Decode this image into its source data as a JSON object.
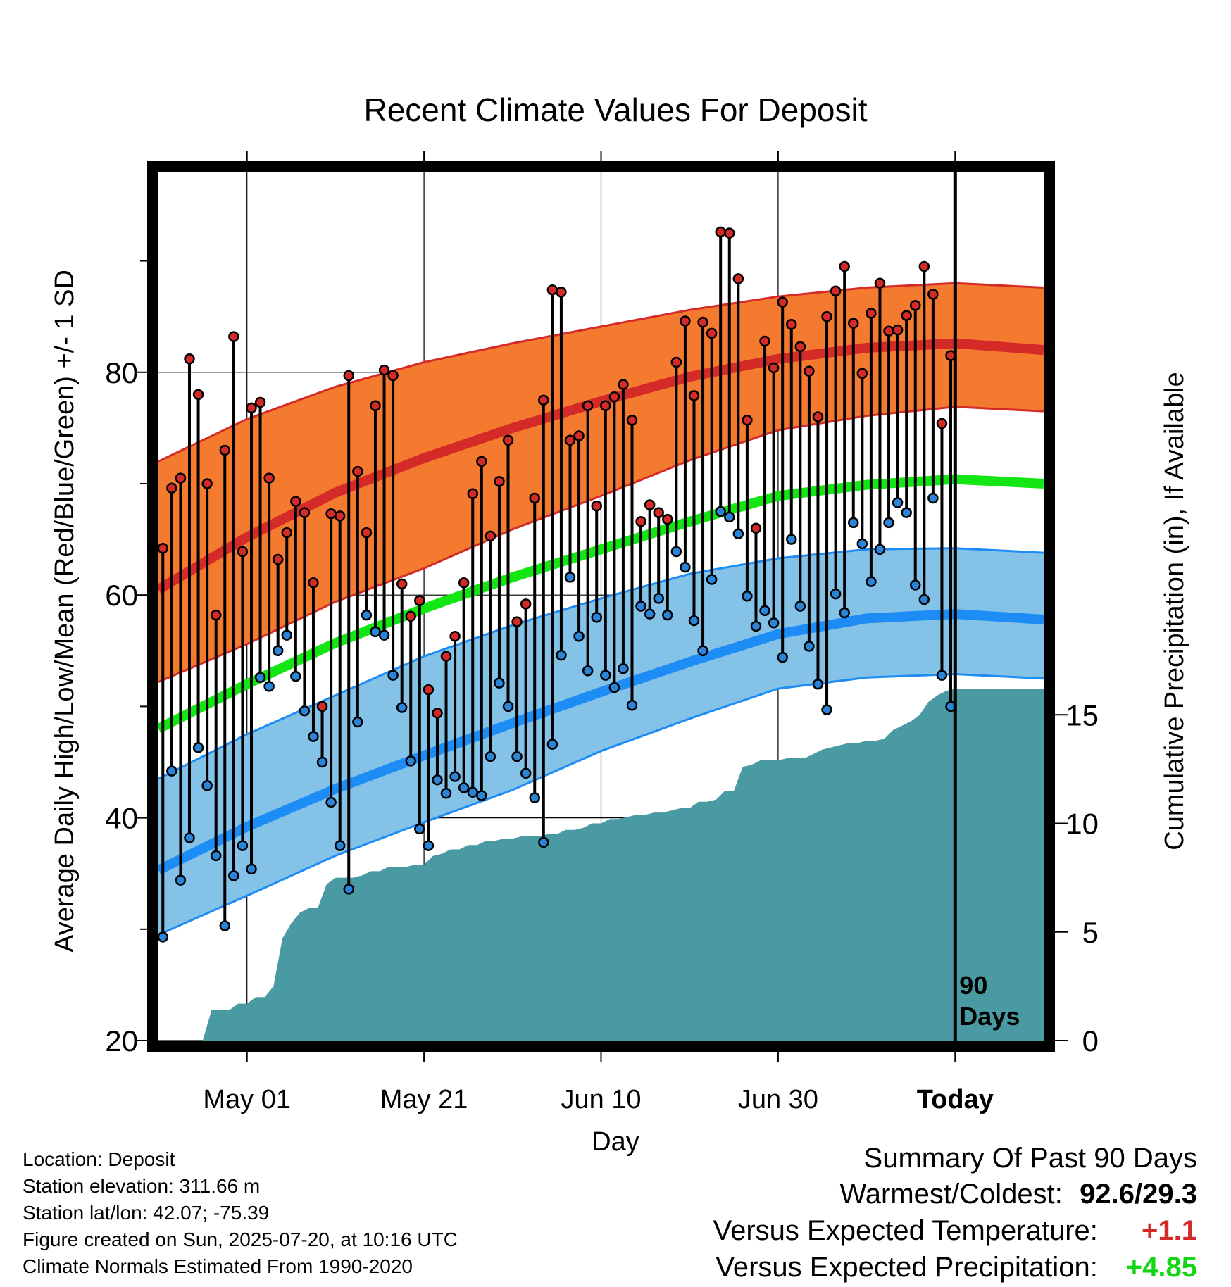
{
  "chart_data": {
    "type": "line",
    "title": "Recent Climate Values For Deposit",
    "xlabel": "Day",
    "ylabel": "Average Daily High/Low/Mean (Red/Blue/Green) +/- 1 SD",
    "y2label": "Cumulative Precipitation (in), If Available",
    "ylim": [
      20,
      98
    ],
    "y2lim": [
      0,
      40
    ],
    "xlim": [
      0,
      100
    ],
    "x_ticks": [
      {
        "x": 10,
        "label": "May 01"
      },
      {
        "x": 30,
        "label": "May 21"
      },
      {
        "x": 50,
        "label": "Jun 10"
      },
      {
        "x": 70,
        "label": "Jun 30"
      },
      {
        "x": 90,
        "label": "Today"
      }
    ],
    "y_ticks": [
      "20",
      "40",
      "60",
      "80"
    ],
    "y2_ticks": [
      "0",
      "5",
      "10",
      "15"
    ],
    "today_x": 90,
    "today_label": "90 Days",
    "colors": {
      "high_band": "#f47a30",
      "high_mean": "#d42a28",
      "low_band": "#84c2e8",
      "low_mean": "#1e8cf5",
      "mean": "#14e614",
      "precip": "#4a9aa4",
      "high_dot": "#d42a28",
      "low_dot": "#2a85d8"
    },
    "normals": {
      "x": [
        0,
        10,
        20,
        30,
        40,
        50,
        60,
        70,
        80,
        90,
        100
      ],
      "high_mean": [
        60.5,
        65.2,
        69.2,
        72.3,
        75.0,
        77.4,
        79.6,
        81.2,
        82.2,
        82.6,
        82.0
      ],
      "high_upper": [
        72.0,
        75.8,
        78.7,
        80.9,
        82.6,
        84.1,
        85.6,
        86.8,
        87.6,
        88.0,
        87.6
      ],
      "high_lower": [
        52.2,
        55.6,
        59.4,
        62.4,
        65.9,
        68.9,
        72.1,
        74.8,
        76.1,
        76.9,
        76.5
      ],
      "mean": [
        48.0,
        52.0,
        55.7,
        58.8,
        61.6,
        64.1,
        66.6,
        68.9,
        69.9,
        70.4,
        70.0
      ],
      "low_mean": [
        35.3,
        39.2,
        42.6,
        45.6,
        48.5,
        51.3,
        54.0,
        56.5,
        57.9,
        58.3,
        57.8
      ],
      "low_upper": [
        43.5,
        47.5,
        51.0,
        54.5,
        57.3,
        59.7,
        61.9,
        63.3,
        64.1,
        64.2,
        63.8
      ],
      "low_lower": [
        29.5,
        33.0,
        36.6,
        39.6,
        42.5,
        46.0,
        48.9,
        51.6,
        52.6,
        52.9,
        52.5
      ]
    },
    "daily_high": [
      64.2,
      69.6,
      70.5,
      81.2,
      78.0,
      70.0,
      58.2,
      73.0,
      83.2,
      63.9,
      76.8,
      77.3,
      70.5,
      63.2,
      65.6,
      68.4,
      67.4,
      61.1,
      50.0,
      67.3,
      67.1,
      79.7,
      71.1,
      65.6,
      77.0,
      80.2,
      79.7,
      61.0,
      58.1,
      59.5,
      51.5,
      49.4,
      54.5,
      56.3,
      61.1,
      69.1,
      72.0,
      65.3,
      70.2,
      73.9,
      57.6,
      59.2,
      68.7,
      77.5,
      87.4,
      87.2,
      73.9,
      74.3,
      77.0,
      68.0,
      77.0,
      77.8,
      78.9,
      75.7,
      66.6,
      68.1,
      67.4,
      66.8,
      80.9,
      84.6,
      77.9,
      84.5,
      83.5,
      92.6,
      92.5,
      88.4,
      75.7,
      66.0,
      82.8,
      80.4,
      86.3,
      84.3,
      82.3,
      80.1,
      76.0,
      85.0,
      87.3,
      89.5,
      84.4,
      79.9,
      85.3,
      88.0,
      83.7,
      83.8,
      85.1,
      86.0,
      89.5,
      87.0,
      75.4,
      81.5
    ],
    "daily_low": [
      29.3,
      44.2,
      34.4,
      38.2,
      46.3,
      42.9,
      36.6,
      30.3,
      34.8,
      37.5,
      35.4,
      52.6,
      51.8,
      55.0,
      56.4,
      52.7,
      49.6,
      47.3,
      45.0,
      41.4,
      37.5,
      33.6,
      48.6,
      58.2,
      56.7,
      56.4,
      52.8,
      49.9,
      45.1,
      39.0,
      37.5,
      43.4,
      42.2,
      43.7,
      42.7,
      42.3,
      42.0,
      45.5,
      52.1,
      50.0,
      45.5,
      44.0,
      41.8,
      37.8,
      46.6,
      54.6,
      61.6,
      56.3,
      53.2,
      58.0,
      52.8,
      51.7,
      53.4,
      50.1,
      59.0,
      58.3,
      59.7,
      58.2,
      63.9,
      62.5,
      57.7,
      55.0,
      61.4,
      67.5,
      67.0,
      65.5,
      59.9,
      57.2,
      58.6,
      57.5,
      54.4,
      65.0,
      59.0,
      55.4,
      52.0,
      49.7,
      60.1,
      58.4,
      66.5,
      64.6,
      61.2,
      64.1,
      66.5,
      68.3,
      67.4,
      60.9,
      59.6,
      68.7,
      52.8,
      50.0
    ],
    "cumulative_precip": {
      "x": [
        0,
        5,
        6,
        8,
        9,
        10,
        11,
        12,
        13,
        14,
        15,
        16,
        17,
        18,
        19,
        20,
        21,
        22,
        23,
        24,
        25,
        26,
        27,
        28,
        29,
        30,
        31,
        32,
        33,
        34,
        35,
        36,
        37,
        38,
        39,
        40,
        41,
        42,
        43,
        44,
        45,
        46,
        47,
        48,
        49,
        50,
        51,
        52,
        53,
        54,
        55,
        56,
        57,
        58,
        59,
        60,
        61,
        62,
        63,
        64,
        65,
        66,
        67,
        68,
        69,
        70,
        71,
        72,
        73,
        74,
        75,
        76,
        77,
        78,
        79,
        80,
        81,
        82,
        83,
        84,
        85,
        86,
        87,
        88,
        89,
        90,
        91,
        92,
        93,
        94,
        95,
        96,
        97,
        98,
        99,
        100
      ],
      "y": [
        0,
        0,
        1.4,
        1.4,
        1.7,
        1.7,
        2.0,
        2.0,
        2.5,
        4.7,
        5.4,
        5.9,
        6.1,
        6.1,
        7.2,
        7.5,
        7.5,
        7.5,
        7.6,
        7.8,
        7.8,
        8.0,
        8.0,
        8.0,
        8.1,
        8.1,
        8.5,
        8.6,
        8.8,
        8.8,
        9.0,
        9.0,
        9.2,
        9.2,
        9.3,
        9.3,
        9.4,
        9.4,
        9.4,
        9.5,
        9.5,
        9.7,
        9.7,
        9.8,
        10.0,
        10.0,
        10.2,
        10.2,
        10.3,
        10.4,
        10.4,
        10.5,
        10.5,
        10.6,
        10.7,
        10.7,
        11.0,
        11.0,
        11.1,
        11.5,
        11.5,
        12.6,
        12.7,
        12.9,
        12.9,
        12.9,
        13.0,
        13.0,
        13.0,
        13.2,
        13.4,
        13.5,
        13.6,
        13.7,
        13.7,
        13.8,
        13.8,
        13.9,
        14.3,
        14.5,
        14.7,
        15.0,
        15.6,
        15.9,
        16.1,
        16.2,
        16.2,
        16.2,
        16.2,
        16.2,
        16.2,
        16.2,
        16.2,
        16.2,
        16.2,
        16.2
      ]
    }
  },
  "info": {
    "location": "Location: Deposit",
    "elevation": "Station elevation: 311.66 m",
    "latlon": "Station lat/lon: 42.07; -75.39",
    "created": "Figure created on Sun, 2025-07-20, at 10:16 UTC",
    "normals": "Climate Normals Estimated From 1990-2020"
  },
  "summary": {
    "title": "Summary Of Past 90 Days",
    "warm_cold_label": "Warmest/Coldest:",
    "warm_cold_value": "92.6/29.3",
    "temp_label": "Versus Expected Temperature:",
    "temp_value": "+1.1",
    "temp_color": "#d42a28",
    "precip_label": "Versus Expected Precipitation:",
    "precip_value": "+4.85",
    "precip_color": "#14d614"
  }
}
